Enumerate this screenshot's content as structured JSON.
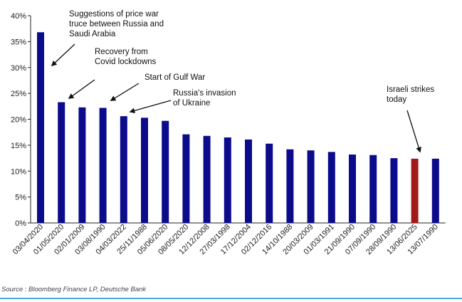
{
  "chart_data": {
    "type": "bar",
    "title": "",
    "xlabel": "",
    "ylabel": "",
    "ylim": [
      0,
      40
    ],
    "yticks": [
      "0%",
      "5%",
      "10%",
      "15%",
      "20%",
      "25%",
      "30%",
      "35%",
      "40%"
    ],
    "categories": [
      "03/04/2020",
      "01/05/2020",
      "02/01/2009",
      "03/08/1990",
      "04/03/2022",
      "25/11/1988",
      "05/06/2020",
      "08/05/2020",
      "12/12/2008",
      "27/03/1998",
      "17/12/2004",
      "02/12/2016",
      "14/10/1988",
      "20/03/2009",
      "01/03/1991",
      "21/09/1990",
      "07/09/1990",
      "28/09/1990",
      "13/06/2025",
      "13/07/1990"
    ],
    "values": [
      36.8,
      23.3,
      22.3,
      22.2,
      20.6,
      20.3,
      19.7,
      17.1,
      16.8,
      16.5,
      16.1,
      15.3,
      14.2,
      14.0,
      13.7,
      13.2,
      13.1,
      12.5,
      12.4,
      12.4
    ],
    "colors": {
      "default": "#0b0b8c",
      "highlight": "#a31919",
      "highlight_index": 18
    },
    "annotations": [
      {
        "lines": [
          "Suggestions of price war",
          "truce between Russia and",
          "Saudi Arabia"
        ],
        "target": 0
      },
      {
        "lines": [
          "Recovery from",
          "Covid lockdowns"
        ],
        "target": 1
      },
      {
        "lines": [
          "Start of Gulf War"
        ],
        "target": 3
      },
      {
        "lines": [
          "Russia's invasion",
          "of Ukraine"
        ],
        "target": 4
      },
      {
        "lines": [
          "Israeli strikes",
          "today"
        ],
        "target": 18
      }
    ]
  },
  "source": "Source : Bloomberg Finance LP, Deutsche Bank"
}
